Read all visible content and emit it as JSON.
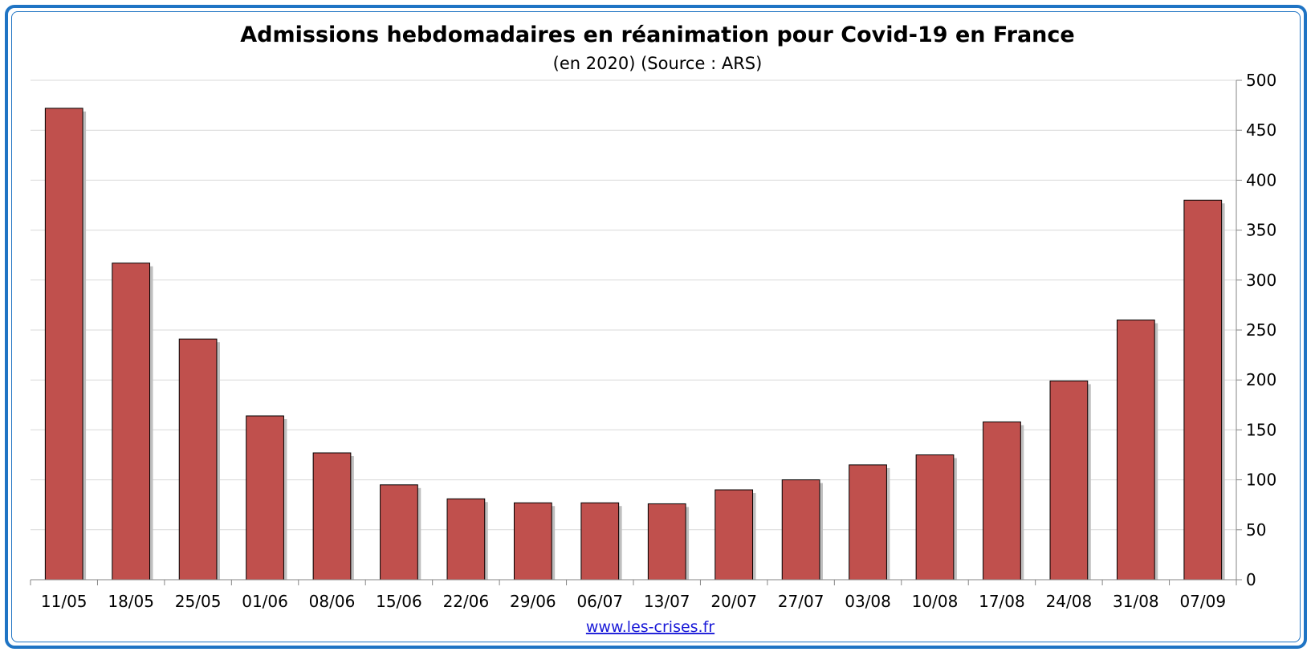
{
  "chart_data": {
    "type": "bar",
    "title": "Admissions hebdomadaires en réanimation pour Covid-19 en France",
    "subtitle": "(en 2020) (Source : ARS)",
    "categories": [
      "11/05",
      "18/05",
      "25/05",
      "01/06",
      "08/06",
      "15/06",
      "22/06",
      "29/06",
      "06/07",
      "13/07",
      "20/07",
      "27/07",
      "03/08",
      "10/08",
      "17/08",
      "24/08",
      "31/08",
      "07/09"
    ],
    "series": [
      {
        "values": [
          472,
          317,
          241,
          164,
          127,
          95,
          81,
          77,
          77,
          76,
          90,
          100,
          115,
          125,
          158,
          199,
          260,
          380
        ]
      }
    ],
    "y_ticks": [
      "0",
      "50",
      "100",
      "150",
      "200",
      "250",
      "300",
      "350",
      "400",
      "450",
      "500"
    ],
    "ylim": [
      0,
      500
    ],
    "y_axis_side": "right",
    "grid": true,
    "legend": "none",
    "xlabel": "",
    "ylabel": "",
    "source_link": "www.les-crises.fr",
    "colors": {
      "bar": "#c0504d",
      "bar_shadow": "#bfbfbf",
      "grid": "#d9d9d9",
      "axis": "#868686",
      "frame": "#1f74c4",
      "link": "#1a1ad8"
    }
  }
}
